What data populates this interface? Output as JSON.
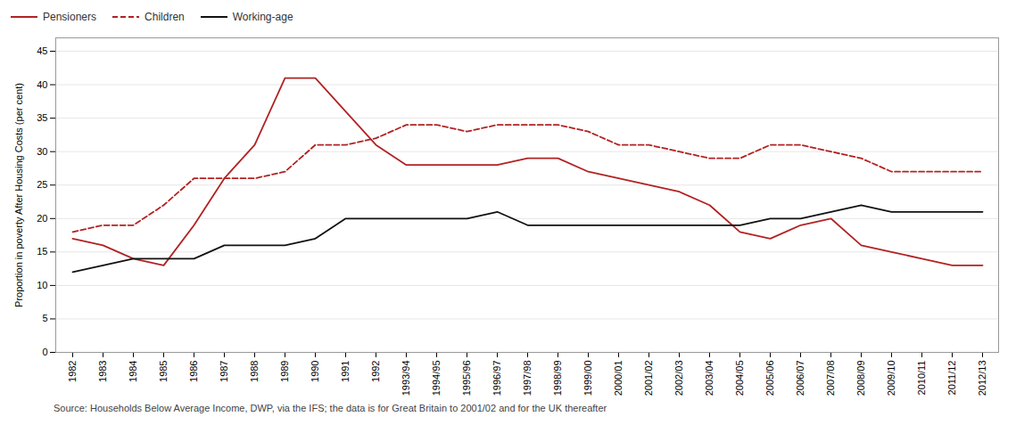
{
  "chart_data": {
    "type": "line",
    "ylabel": "Proportion in poverty After Housing Costs (per cent)",
    "caption": "Source: Households Below Average Income, DWP, via the IFS; the data is for Great Britain to 2001/02 and for the UK thereafter",
    "categories": [
      "1982",
      "1983",
      "1984",
      "1985",
      "1986",
      "1987",
      "1988",
      "1989",
      "1990",
      "1991",
      "1992",
      "1993/94",
      "1994/95",
      "1995/96",
      "1996/97",
      "1997/98",
      "1998/99",
      "1999/00",
      "2000/01",
      "2001/02",
      "2002/03",
      "2003/04",
      "2004/05",
      "2005/06",
      "2006/07",
      "2007/08",
      "2008/09",
      "2009/10",
      "2010/11",
      "2011/12",
      "2012/13"
    ],
    "series": [
      {
        "name": "Pensioners",
        "color": "#b22222",
        "line_style": "solid",
        "values": [
          17,
          16,
          14,
          13,
          19,
          26,
          31,
          41,
          41,
          36,
          31,
          28,
          28,
          28,
          28,
          29,
          29,
          27,
          26,
          25,
          24,
          22,
          18,
          17,
          19,
          20,
          16,
          15,
          14,
          13,
          13
        ]
      },
      {
        "name": "Children",
        "color": "#b22222",
        "line_style": "dashed",
        "values": [
          18,
          19,
          19,
          22,
          26,
          26,
          26,
          27,
          31,
          31,
          32,
          34,
          34,
          33,
          34,
          34,
          34,
          33,
          31,
          31,
          30,
          29,
          29,
          31,
          31,
          30,
          29,
          27,
          27,
          27,
          27
        ]
      },
      {
        "name": "Working-age",
        "color": "#111111",
        "line_style": "solid",
        "values": [
          12,
          13,
          14,
          14,
          14,
          16,
          16,
          16,
          17,
          20,
          20,
          20,
          20,
          20,
          21,
          19,
          19,
          19,
          19,
          19,
          19,
          19,
          19,
          20,
          20,
          21,
          22,
          21,
          21,
          21,
          21
        ]
      }
    ],
    "ylim": [
      0,
      47
    ],
    "yticks": [
      0,
      5,
      10,
      15,
      20,
      25,
      30,
      35,
      40,
      45
    ],
    "grid": true,
    "legend": "upper left"
  }
}
